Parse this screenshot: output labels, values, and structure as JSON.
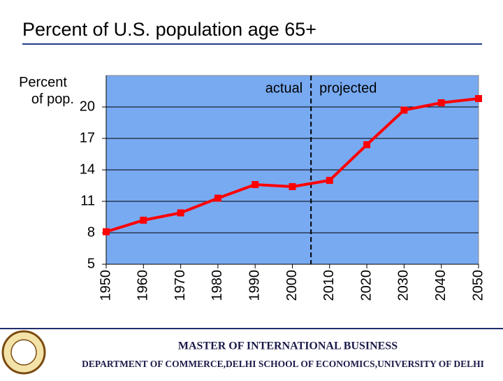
{
  "chart_data": {
    "type": "line",
    "title": "Percent of U.S. population age 65+",
    "y_label": "Percent of pop.",
    "annotations": [
      "actual",
      "projected"
    ],
    "divider_x": 2005,
    "x": [
      1950,
      1960,
      1970,
      1980,
      1990,
      2000,
      2010,
      2020,
      2030,
      2040,
      2050
    ],
    "series": [
      {
        "name": "Percent age 65+",
        "color": "#ff0000",
        "values": [
          8.1,
          9.2,
          9.9,
          11.3,
          12.6,
          12.4,
          13.0,
          16.4,
          19.7,
          20.4,
          20.8
        ]
      }
    ],
    "xlim": [
      1950,
      2050
    ],
    "xticks": [
      1950,
      1960,
      1970,
      1980,
      1990,
      2000,
      2010,
      2020,
      2030,
      2040,
      2050
    ],
    "ylim": [
      5,
      23
    ],
    "yticks": [
      5,
      8,
      11,
      14,
      17,
      20
    ],
    "grid": true,
    "plot_color": "#78aaf2"
  },
  "footer": {
    "program": "MASTER OF INTERNATIONAL BUSINESS",
    "department": "DEPARTMENT OF COMMERCE,DELHI SCHOOL OF ECONOMICS,UNIVERSITY OF DELHI"
  }
}
